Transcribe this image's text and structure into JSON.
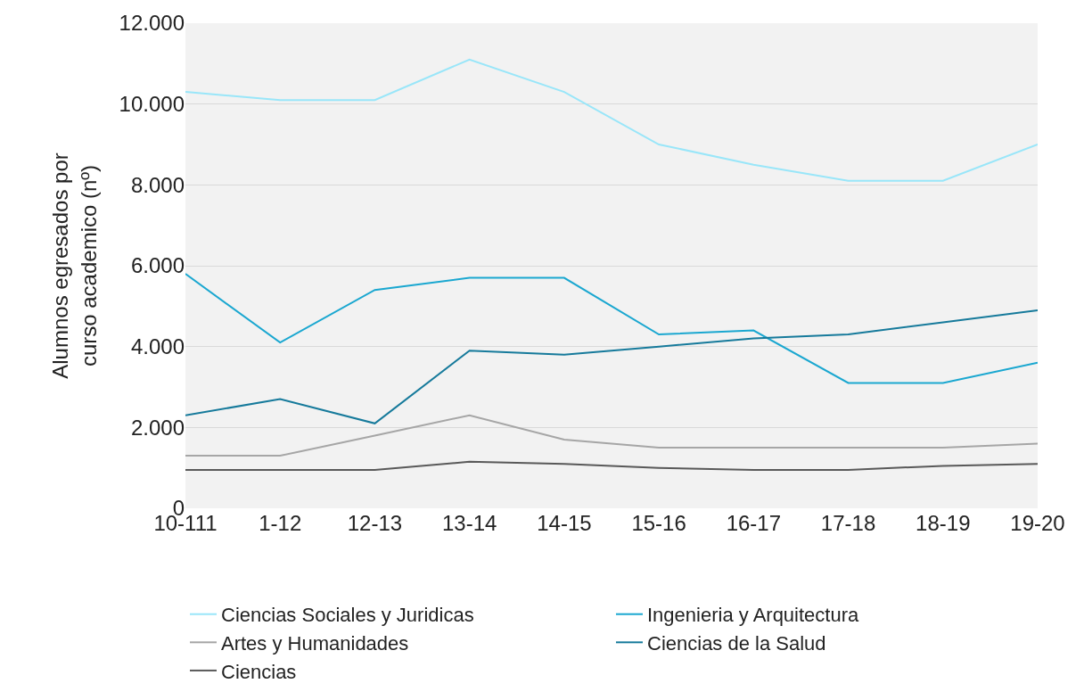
{
  "chart_data": {
    "type": "line",
    "ylabel": "Alumnos egresados por curso academico (nº)",
    "categories": [
      "10-111",
      "1-12",
      "12-13",
      "13-14",
      "14-15",
      "15-16",
      "16-17",
      "17-18",
      "18-19",
      "19-20"
    ],
    "series": [
      {
        "name": "Ciencias Sociales y Juridicas",
        "color": "#99e6f9",
        "values": [
          10300,
          10100,
          10100,
          11100,
          10300,
          9000,
          8500,
          8100,
          8100,
          9000
        ]
      },
      {
        "name": "Ingenieria y Arquitectura",
        "color": "#1aa7d0",
        "values": [
          5800,
          4100,
          5400,
          5700,
          5700,
          4300,
          4400,
          3100,
          3100,
          3600
        ]
      },
      {
        "name": "Artes y Humanidades",
        "color": "#a6a6a6",
        "values": [
          1300,
          1300,
          1800,
          2300,
          1700,
          1500,
          1500,
          1500,
          1500,
          1600
        ]
      },
      {
        "name": "Ciencias de la Salud",
        "color": "#167a9b",
        "values": [
          2300,
          2700,
          2100,
          3900,
          3800,
          4000,
          4200,
          4300,
          4600,
          4900
        ]
      },
      {
        "name": "Ciencias",
        "color": "#595959",
        "values": [
          950,
          950,
          950,
          1150,
          1100,
          1000,
          950,
          950,
          1050,
          1100
        ]
      }
    ],
    "ylim": [
      0,
      12000
    ],
    "yticks": [
      {
        "value": 0,
        "label": "0"
      },
      {
        "value": 2000,
        "label": "2.000"
      },
      {
        "value": 4000,
        "label": "4.000"
      },
      {
        "value": 6000,
        "label": "6.000"
      },
      {
        "value": 8000,
        "label": "8.000"
      },
      {
        "value": 10000,
        "label": "10.000"
      },
      {
        "value": 12000,
        "label": "12.000"
      }
    ],
    "grid": "y",
    "legend": "bottom",
    "marker": "none",
    "line_style": "solid"
  }
}
